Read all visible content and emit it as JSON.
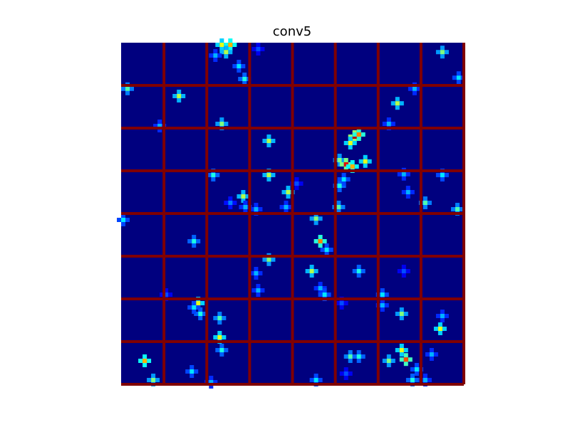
{
  "chart_data": {
    "type": "heatmap",
    "title": "conv5",
    "grid": {
      "rows": 8,
      "cols": 8
    },
    "colormap": "jet",
    "value_range": [
      0,
      1
    ],
    "separator_color": "#800000",
    "background_color": "#00007f",
    "hotspots": [
      {
        "tile": [
          0,
          2
        ],
        "points": [
          [
            0.35,
            0.05,
            0.6
          ],
          [
            0.55,
            0.05,
            0.7
          ],
          [
            0.45,
            0.22,
            0.55
          ],
          [
            0.75,
            0.55,
            0.35
          ],
          [
            0.88,
            0.85,
            0.4
          ],
          [
            0.2,
            0.3,
            0.3
          ]
        ]
      },
      {
        "tile": [
          0,
          3
        ],
        "points": [
          [
            0.2,
            0.15,
            0.2
          ]
        ]
      },
      {
        "tile": [
          0,
          7
        ],
        "points": [
          [
            0.5,
            0.22,
            0.5
          ],
          [
            0.88,
            0.82,
            0.35
          ]
        ]
      },
      {
        "tile": [
          1,
          0
        ],
        "points": [
          [
            0.15,
            0.08,
            0.45
          ],
          [
            0.9,
            0.95,
            0.3
          ]
        ]
      },
      {
        "tile": [
          1,
          1
        ],
        "points": [
          [
            0.35,
            0.25,
            0.55
          ]
        ]
      },
      {
        "tile": [
          1,
          2
        ],
        "points": [
          [
            0.35,
            0.9,
            0.5
          ]
        ]
      },
      {
        "tile": [
          1,
          6
        ],
        "points": [
          [
            0.45,
            0.42,
            0.55
          ],
          [
            0.85,
            0.08,
            0.3
          ],
          [
            0.25,
            0.9,
            0.3
          ]
        ]
      },
      {
        "tile": [
          2,
          3
        ],
        "points": [
          [
            0.45,
            0.3,
            0.55
          ]
        ]
      },
      {
        "tile": [
          2,
          5
        ],
        "points": [
          [
            0.45,
            0.2,
            0.95
          ],
          [
            0.55,
            0.15,
            0.75
          ],
          [
            0.35,
            0.35,
            0.6
          ],
          [
            0.1,
            0.75,
            0.5
          ],
          [
            0.25,
            0.85,
            0.9
          ],
          [
            0.4,
            0.9,
            0.7
          ],
          [
            0.7,
            0.78,
            0.6
          ]
        ]
      },
      {
        "tile": [
          3,
          2
        ],
        "points": [
          [
            0.15,
            0.1,
            0.4
          ],
          [
            0.85,
            0.6,
            0.55
          ],
          [
            0.9,
            0.85,
            0.3
          ],
          [
            0.55,
            0.75,
            0.25
          ]
        ]
      },
      {
        "tile": [
          3,
          3
        ],
        "points": [
          [
            0.45,
            0.1,
            0.55
          ],
          [
            0.9,
            0.5,
            0.55
          ],
          [
            0.15,
            0.9,
            0.3
          ],
          [
            0.85,
            0.85,
            0.3
          ]
        ]
      },
      {
        "tile": [
          3,
          4
        ],
        "points": [
          [
            0.1,
            0.3,
            0.2
          ]
        ]
      },
      {
        "tile": [
          3,
          5
        ],
        "points": [
          [
            0.1,
            0.35,
            0.4
          ],
          [
            0.2,
            0.2,
            0.35
          ],
          [
            0.08,
            0.85,
            0.45
          ]
        ]
      },
      {
        "tile": [
          3,
          6
        ],
        "points": [
          [
            0.6,
            0.08,
            0.3
          ],
          [
            0.7,
            0.5,
            0.3
          ]
        ]
      },
      {
        "tile": [
          3,
          7
        ],
        "points": [
          [
            0.1,
            0.75,
            0.45
          ],
          [
            0.85,
            0.9,
            0.45
          ],
          [
            0.5,
            0.1,
            0.35
          ]
        ]
      },
      {
        "tile": [
          4,
          0
        ],
        "points": [
          [
            0.05,
            0.15,
            0.35
          ]
        ]
      },
      {
        "tile": [
          4,
          1
        ],
        "points": [
          [
            0.7,
            0.65,
            0.4
          ]
        ]
      },
      {
        "tile": [
          4,
          4
        ],
        "points": [
          [
            0.55,
            0.12,
            0.5
          ],
          [
            0.65,
            0.65,
            0.75
          ],
          [
            0.8,
            0.85,
            0.35
          ]
        ]
      },
      {
        "tile": [
          5,
          1
        ],
        "points": [
          [
            0.05,
            0.9,
            0.2
          ]
        ]
      },
      {
        "tile": [
          5,
          3
        ],
        "points": [
          [
            0.45,
            0.08,
            0.5
          ],
          [
            0.15,
            0.4,
            0.3
          ],
          [
            0.2,
            0.8,
            0.3
          ]
        ]
      },
      {
        "tile": [
          5,
          4
        ],
        "points": [
          [
            0.45,
            0.35,
            0.55
          ],
          [
            0.65,
            0.75,
            0.3
          ],
          [
            0.75,
            0.9,
            0.35
          ]
        ]
      },
      {
        "tile": [
          5,
          5
        ],
        "points": [
          [
            0.55,
            0.35,
            0.4
          ]
        ]
      },
      {
        "tile": [
          5,
          6
        ],
        "points": [
          [
            0.1,
            0.9,
            0.35
          ],
          [
            0.6,
            0.35,
            0.2
          ]
        ]
      },
      {
        "tile": [
          6,
          1
        ],
        "points": [
          [
            0.8,
            0.1,
            0.6
          ],
          [
            0.85,
            0.35,
            0.4
          ],
          [
            0.7,
            0.2,
            0.35
          ]
        ]
      },
      {
        "tile": [
          6,
          2
        ],
        "points": [
          [
            0.3,
            0.45,
            0.45
          ],
          [
            0.3,
            0.9,
            0.6
          ]
        ]
      },
      {
        "tile": [
          6,
          5
        ],
        "points": [
          [
            0.15,
            0.1,
            0.2
          ]
        ]
      },
      {
        "tile": [
          6,
          6
        ],
        "points": [
          [
            0.55,
            0.35,
            0.5
          ],
          [
            0.1,
            0.15,
            0.3
          ]
        ]
      },
      {
        "tile": [
          6,
          7
        ],
        "points": [
          [
            0.45,
            0.7,
            0.6
          ],
          [
            0.5,
            0.4,
            0.3
          ]
        ]
      },
      {
        "tile": [
          7,
          0
        ],
        "points": [
          [
            0.55,
            0.45,
            0.7
          ],
          [
            0.75,
            0.9,
            0.5
          ]
        ]
      },
      {
        "tile": [
          7,
          1
        ],
        "points": [
          [
            0.65,
            0.7,
            0.35
          ]
        ]
      },
      {
        "tile": [
          7,
          2
        ],
        "points": [
          [
            0.35,
            0.2,
            0.4
          ],
          [
            0.1,
            0.95,
            0.3
          ]
        ]
      },
      {
        "tile": [
          7,
          4
        ],
        "points": [
          [
            0.55,
            0.9,
            0.35
          ]
        ]
      },
      {
        "tile": [
          7,
          5
        ],
        "points": [
          [
            0.35,
            0.35,
            0.45
          ],
          [
            0.55,
            0.35,
            0.4
          ],
          [
            0.25,
            0.75,
            0.2
          ]
        ]
      },
      {
        "tile": [
          7,
          6
        ],
        "points": [
          [
            0.55,
            0.2,
            0.6
          ],
          [
            0.65,
            0.42,
            0.8
          ],
          [
            0.25,
            0.45,
            0.5
          ],
          [
            0.8,
            0.9,
            0.4
          ],
          [
            0.9,
            0.65,
            0.35
          ]
        ]
      },
      {
        "tile": [
          7,
          7
        ],
        "points": [
          [
            0.25,
            0.3,
            0.3
          ],
          [
            0.1,
            0.9,
            0.3
          ]
        ]
      }
    ]
  }
}
